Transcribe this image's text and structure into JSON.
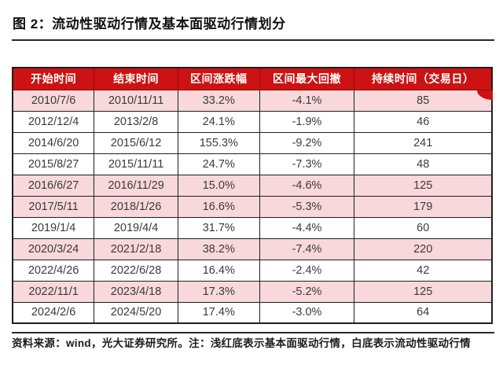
{
  "title": "图 2：流动性驱动行情及基本面驱动行情划分",
  "table": {
    "headers": [
      "开始时间",
      "结束时间",
      "区间涨跌幅",
      "区间最大回撤",
      "持续时间（交易日）"
    ],
    "rows": [
      {
        "cells": [
          "2010/7/6",
          "2010/11/11",
          "33.2%",
          "-4.1%",
          "85"
        ],
        "highlight": true
      },
      {
        "cells": [
          "2012/12/4",
          "2013/2/8",
          "24.1%",
          "-1.9%",
          "46"
        ],
        "highlight": false
      },
      {
        "cells": [
          "2014/6/20",
          "2015/6/12",
          "155.3%",
          "-9.2%",
          "241"
        ],
        "highlight": false
      },
      {
        "cells": [
          "2015/8/27",
          "2015/11/11",
          "24.7%",
          "-7.3%",
          "48"
        ],
        "highlight": false
      },
      {
        "cells": [
          "2016/6/27",
          "2016/11/29",
          "15.0%",
          "-4.6%",
          "125"
        ],
        "highlight": true
      },
      {
        "cells": [
          "2017/5/11",
          "2018/1/26",
          "16.6%",
          "-5.3%",
          "179"
        ],
        "highlight": true
      },
      {
        "cells": [
          "2019/1/4",
          "2019/4/4",
          "31.7%",
          "-4.4%",
          "60"
        ],
        "highlight": false
      },
      {
        "cells": [
          "2020/3/24",
          "2021/2/18",
          "38.2%",
          "-7.4%",
          "220"
        ],
        "highlight": true
      },
      {
        "cells": [
          "2022/4/26",
          "2022/6/28",
          "16.4%",
          "-2.4%",
          "42"
        ],
        "highlight": false
      },
      {
        "cells": [
          "2022/11/1",
          "2023/4/18",
          "17.3%",
          "-5.2%",
          "125"
        ],
        "highlight": true
      },
      {
        "cells": [
          "2024/2/6",
          "2024/5/20",
          "17.4%",
          "-3.0%",
          "64"
        ],
        "highlight": false
      }
    ],
    "highlight_legend": "浅红底表示基本面驱动行情，白底表示流动性驱动行情"
  },
  "footer": "资料来源：wind，光大证券研究所。注：浅红底表示基本面驱动行情，白底表示流动性驱动行情",
  "colors": {
    "header_bg": "#cc1212",
    "header_text": "#ffffff",
    "highlight_row_bg": "#f8d8da",
    "row_text": "#3b3b3b",
    "border": "#1f1f1f",
    "title_text": "#111111"
  }
}
